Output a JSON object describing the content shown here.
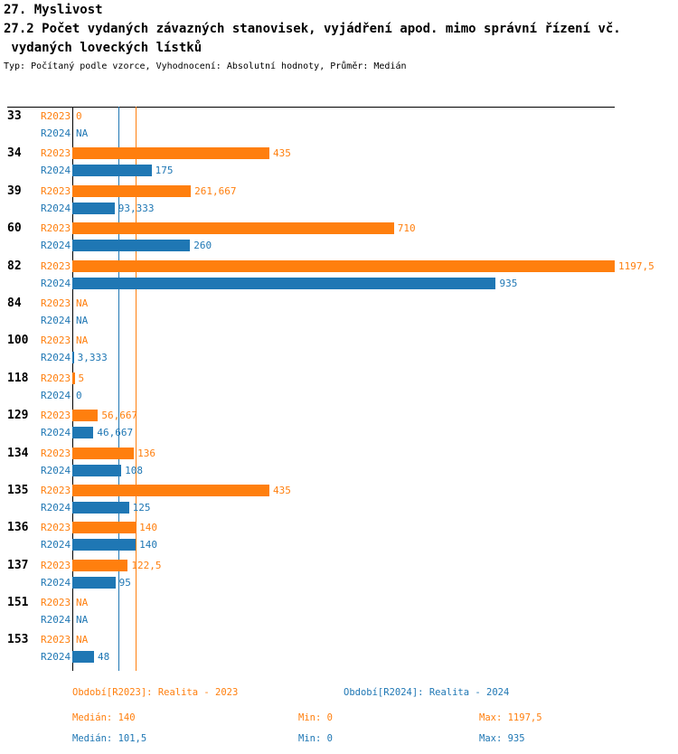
{
  "header": {
    "title": "27. Myslivost",
    "subtitle_line1": "27.2 Počet vydaných závazných stanovisek, vyjádření apod. mimo správní řízení vč.",
    "subtitle_line2": " vydaných loveckých lístků",
    "meta": "Typ: Počítaný podle vzorce, Vyhodnocení: Absolutní hodnoty, Průměr: Medián"
  },
  "colors": {
    "r2023": "#ff7f0e",
    "r2024": "#1f77b4",
    "axis": "#000000"
  },
  "chart_data": {
    "type": "bar",
    "orientation": "horizontal",
    "title": "27.2 Počet vydaných závazných stanovisek, vyjádření apod. mimo správní řízení vč. vydaných loveckých lístků",
    "categories": [
      "33",
      "34",
      "39",
      "60",
      "82",
      "84",
      "100",
      "118",
      "129",
      "134",
      "135",
      "136",
      "137",
      "151",
      "153"
    ],
    "series": [
      {
        "name": "R2023",
        "legend": "Období[R2023]: Realita - 2023",
        "color": "#ff7f0e",
        "values": [
          0,
          435,
          261.667,
          710,
          1197.5,
          null,
          null,
          5,
          56.667,
          136,
          435,
          140,
          122.5,
          null,
          null
        ],
        "value_labels": [
          "0",
          "435",
          "261,667",
          "710",
          "1197,5",
          "NA",
          "NA",
          "5",
          "56,667",
          "136",
          "435",
          "140",
          "122,5",
          "NA",
          "NA"
        ],
        "stats": {
          "median": 140,
          "min": 0,
          "max": 1197.5
        }
      },
      {
        "name": "R2024",
        "legend": "Období[R2024]: Realita - 2024",
        "color": "#1f77b4",
        "values": [
          null,
          175,
          93.333,
          260,
          935,
          null,
          3.333,
          0,
          46.667,
          108,
          125,
          140,
          95,
          null,
          48
        ],
        "value_labels": [
          "NA",
          "175",
          "93,333",
          "260",
          "935",
          "NA",
          "3,333",
          "0",
          "46,667",
          "108",
          "125",
          "140",
          "95",
          "NA",
          "48"
        ],
        "stats": {
          "median": 101.5,
          "min": 0,
          "max": 935
        }
      }
    ],
    "xlim": [
      0,
      1197.5
    ],
    "reference_lines": [
      {
        "name": "median-2023",
        "value": 140,
        "color": "#ff7f0e"
      },
      {
        "name": "median-2024",
        "value": 101.5,
        "color": "#1f77b4"
      }
    ],
    "grid": false,
    "legend_position": "bottom"
  },
  "legend": {
    "r2023_period": "Období[R2023]: Realita - 2023",
    "r2024_period": "Období[R2024]: Realita - 2024",
    "r2023_median": "Medián: 140",
    "r2023_min": "Min: 0",
    "r2023_max": "Max: 1197,5",
    "r2024_median": "Medián: 101,5",
    "r2024_min": "Min: 0",
    "r2024_max": "Max: 935"
  }
}
